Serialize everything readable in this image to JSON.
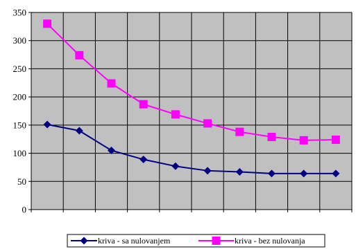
{
  "chart_data": {
    "type": "line",
    "title": "",
    "xlabel": "",
    "ylabel": "",
    "x": [
      1,
      2,
      3,
      4,
      5,
      6,
      7,
      8,
      9,
      10
    ],
    "ylim": [
      0,
      350
    ],
    "yticks": [
      "0",
      "50",
      "100",
      "150",
      "200",
      "250",
      "300",
      "350"
    ],
    "grid": true,
    "plot_background": "#c0c0c0",
    "legend_position": "bottom",
    "series": [
      {
        "name": "kriva - sa nulovanjem",
        "color": "#000080",
        "marker": "diamond",
        "values": [
          151,
          140,
          105,
          89,
          77,
          69,
          67,
          64,
          64,
          64
        ]
      },
      {
        "name": "kriva  - bez nulovanja",
        "color": "#ff00ff",
        "marker": "square",
        "values": [
          330,
          274,
          224,
          187,
          169,
          153,
          138,
          129,
          123,
          124
        ]
      }
    ]
  }
}
